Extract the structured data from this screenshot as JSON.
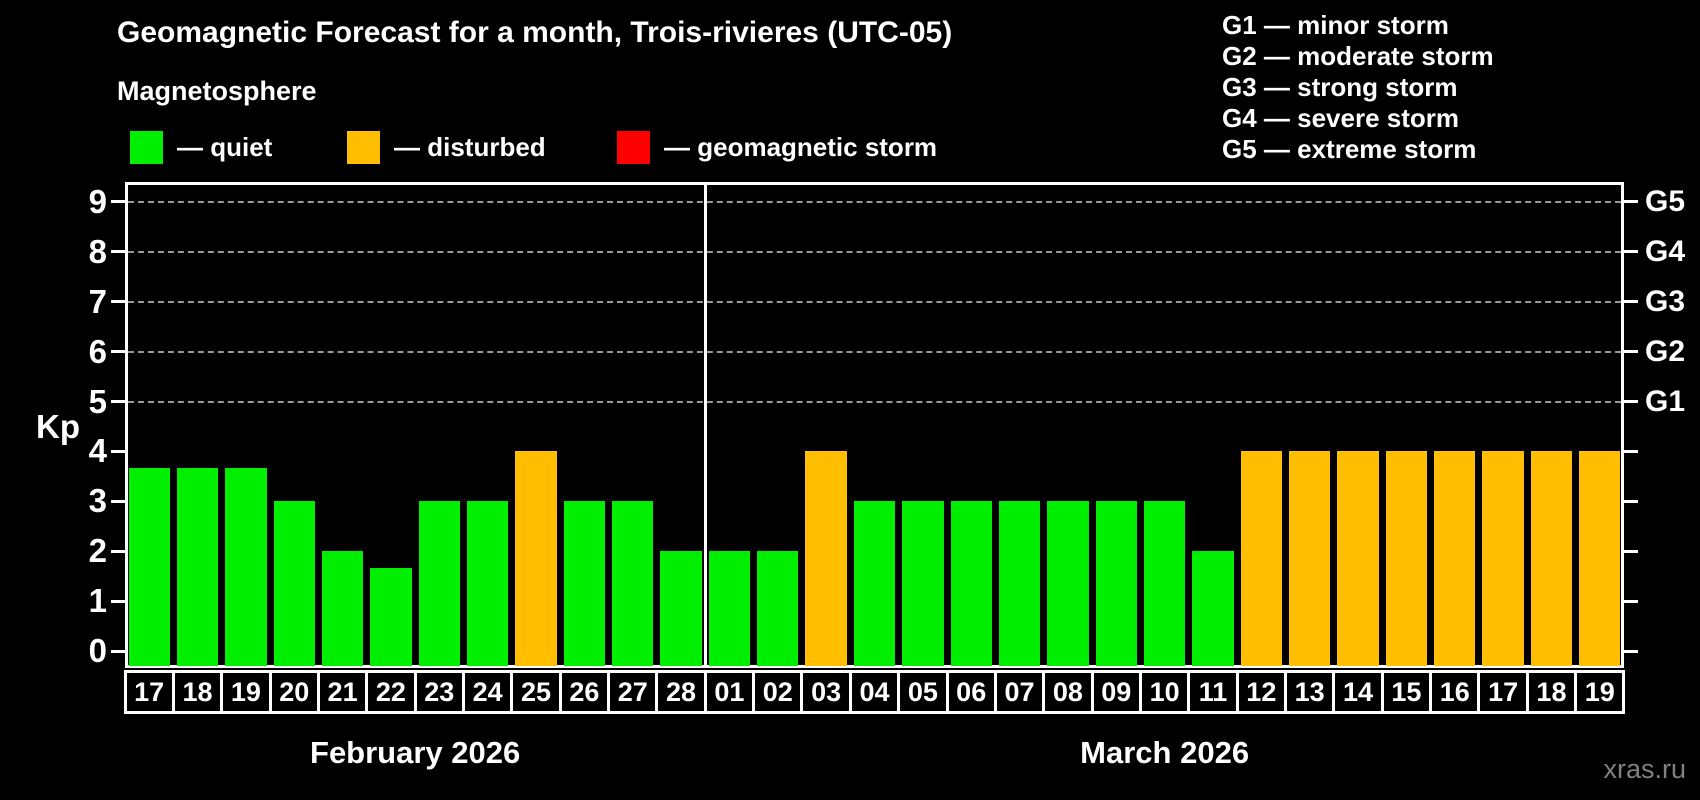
{
  "watermark": "xras.ru",
  "legend": {
    "title": "Magnetosphere",
    "items": [
      {
        "label": "— quiet",
        "color": "#00ee00"
      },
      {
        "label": "— disturbed",
        "color": "#ffbe00"
      },
      {
        "label": "— geomagnetic storm",
        "color": "#ff0000"
      }
    ]
  },
  "g_legend": {
    "items": [
      "G1 — minor storm",
      "G2 — moderate storm",
      "G3 — strong storm",
      "G4 — severe storm",
      "G5 — extreme storm"
    ]
  },
  "chart_data": {
    "type": "bar",
    "title": "Geomagnetic Forecast for a month, Trois-rivieres (UTC-05)",
    "ylabel": "Kp",
    "ylim": [
      0,
      9
    ],
    "yticks": [
      0,
      1,
      2,
      3,
      4,
      5,
      6,
      7,
      8,
      9
    ],
    "grid_levels": [
      5,
      6,
      7,
      8,
      9
    ],
    "grid": true,
    "right_axis": [
      {
        "kp": 5,
        "label": "G1"
      },
      {
        "kp": 6,
        "label": "G2"
      },
      {
        "kp": 7,
        "label": "G3"
      },
      {
        "kp": 8,
        "label": "G4"
      },
      {
        "kp": 9,
        "label": "G5"
      }
    ],
    "status_colors": {
      "quiet": "#00ee00",
      "disturbed": "#ffbe00",
      "storm": "#ff0000"
    },
    "months": [
      {
        "label": "February 2026",
        "bars": [
          {
            "day": "17",
            "kp": 3.67,
            "status": "quiet"
          },
          {
            "day": "18",
            "kp": 3.67,
            "status": "quiet"
          },
          {
            "day": "19",
            "kp": 3.67,
            "status": "quiet"
          },
          {
            "day": "20",
            "kp": 3,
            "status": "quiet"
          },
          {
            "day": "21",
            "kp": 2,
            "status": "quiet"
          },
          {
            "day": "22",
            "kp": 1.67,
            "status": "quiet"
          },
          {
            "day": "23",
            "kp": 3,
            "status": "quiet"
          },
          {
            "day": "24",
            "kp": 3,
            "status": "quiet"
          },
          {
            "day": "25",
            "kp": 4,
            "status": "disturbed"
          },
          {
            "day": "26",
            "kp": 3,
            "status": "quiet"
          },
          {
            "day": "27",
            "kp": 3,
            "status": "quiet"
          },
          {
            "day": "28",
            "kp": 2,
            "status": "quiet"
          }
        ]
      },
      {
        "label": "March 2026",
        "bars": [
          {
            "day": "01",
            "kp": 2,
            "status": "quiet"
          },
          {
            "day": "02",
            "kp": 2,
            "status": "quiet"
          },
          {
            "day": "03",
            "kp": 4,
            "status": "disturbed"
          },
          {
            "day": "04",
            "kp": 3,
            "status": "quiet"
          },
          {
            "day": "05",
            "kp": 3,
            "status": "quiet"
          },
          {
            "day": "06",
            "kp": 3,
            "status": "quiet"
          },
          {
            "day": "07",
            "kp": 3,
            "status": "quiet"
          },
          {
            "day": "08",
            "kp": 3,
            "status": "quiet"
          },
          {
            "day": "09",
            "kp": 3,
            "status": "quiet"
          },
          {
            "day": "10",
            "kp": 3,
            "status": "quiet"
          },
          {
            "day": "11",
            "kp": 2,
            "status": "quiet"
          },
          {
            "day": "12",
            "kp": 4,
            "status": "disturbed"
          },
          {
            "day": "13",
            "kp": 4,
            "status": "disturbed"
          },
          {
            "day": "14",
            "kp": 4,
            "status": "disturbed"
          },
          {
            "day": "15",
            "kp": 4,
            "status": "disturbed"
          },
          {
            "day": "16",
            "kp": 4,
            "status": "disturbed"
          },
          {
            "day": "17",
            "kp": 4,
            "status": "disturbed"
          },
          {
            "day": "18",
            "kp": 4,
            "status": "disturbed"
          },
          {
            "day": "19",
            "kp": 4,
            "status": "disturbed"
          }
        ]
      }
    ]
  }
}
